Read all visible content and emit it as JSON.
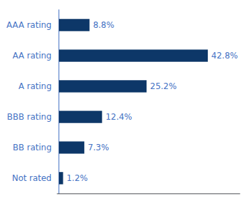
{
  "chart_data": {
    "type": "bar",
    "orientation": "horizontal",
    "categories": [
      "AAA rating",
      "AA rating",
      "A rating",
      "BBB rating",
      "BB rating",
      "Not rated"
    ],
    "values": [
      8.8,
      42.8,
      25.2,
      12.4,
      7.3,
      1.2
    ],
    "value_labels": [
      "8.8%",
      "42.8%",
      "25.2%",
      "12.4%",
      "7.3%",
      "1.2%"
    ],
    "color": "#0d3768",
    "xlim": [
      -0.5,
      52
    ],
    "xticks": [],
    "grid": false,
    "data_labels": true,
    "tick_labels": "y"
  }
}
